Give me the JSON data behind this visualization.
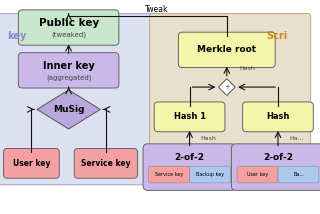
{
  "bg_left_color": "#dde0f0",
  "bg_right_color": "#e8dfcc",
  "public_key_color": "#c8e6c9",
  "inner_key_color": "#c9b8e8",
  "musig_color": "#b8a8dc",
  "user_service_color": "#f4a0a0",
  "merkle_hash_color": "#f5f5aa",
  "twooftwo_color": "#c9b8e8",
  "service_key_small_color": "#f4a0a0",
  "backup_key_small_color": "#aac8f0",
  "user_key_small_color": "#f4a0a0",
  "left_label": "key",
  "right_label": "Scri",
  "tweak_label": "Tweak",
  "arrow_color": "#111111",
  "edge_color": "#666666"
}
